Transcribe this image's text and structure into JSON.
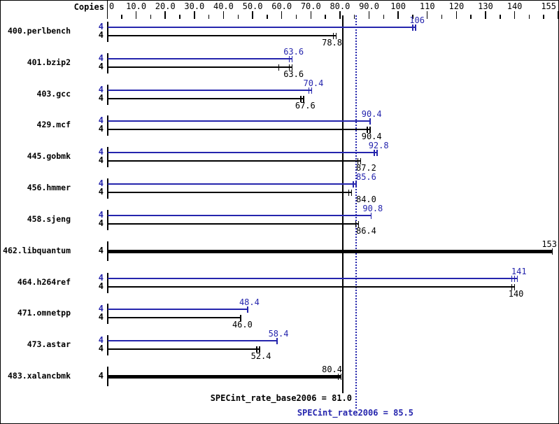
{
  "chart_data": {
    "type": "bar",
    "orientation": "horizontal",
    "title": "",
    "copies_header": "Copies",
    "xlim": [
      0,
      155
    ],
    "x_tick_values": [
      0,
      10,
      20,
      30,
      40,
      50,
      60,
      70,
      80,
      90,
      100,
      110,
      120,
      130,
      140,
      155
    ],
    "x_tick_labels": [
      "0",
      "10.0",
      "20.0",
      "30.0",
      "40.0",
      "50.0",
      "60.0",
      "70.0",
      "80.0",
      "90.0",
      "100",
      "110",
      "120",
      "130",
      "140",
      "155"
    ],
    "x_minor_ticks": [
      5,
      15,
      25,
      35,
      45,
      55,
      65,
      75,
      85,
      95,
      105,
      115,
      125,
      135,
      145,
      150
    ],
    "categories": [
      "400.perlbench",
      "401.bzip2",
      "403.gcc",
      "429.mcf",
      "445.gobmk",
      "456.hmmer",
      "458.sjeng",
      "462.libquantum",
      "464.h264ref",
      "471.omnetpp",
      "473.astar",
      "483.xalancbmk"
    ],
    "series": [
      {
        "name": "peak (SPECint_rate2006)",
        "color": "#2525ad",
        "values": [
          106,
          63.6,
          70.4,
          90.4,
          92.8,
          85.6,
          90.8,
          153,
          141,
          48.4,
          58.4,
          80.4
        ]
      },
      {
        "name": "base (SPECint_rate_base2006)",
        "color": "#000000",
        "values": [
          78.8,
          63.6,
          67.6,
          90.4,
          87.2,
          84.0,
          86.4,
          153,
          140,
          46.0,
          52.4,
          80.4
        ]
      }
    ],
    "benchmarks": [
      {
        "name": "400.perlbench",
        "copies": [
          "4",
          "4"
        ],
        "peak": 106,
        "peak_label": "106",
        "peak_marks": 2,
        "base": 78.8,
        "base_label": "78.8",
        "base_marks": 2
      },
      {
        "name": "401.bzip2",
        "copies": [
          "4",
          "4"
        ],
        "peak": 63.6,
        "peak_label": "63.6",
        "peak_marks": 2,
        "base": 63.6,
        "base_label": "63.6",
        "base_marks": 2,
        "base_mid_marks": [
          59.0
        ]
      },
      {
        "name": "403.gcc",
        "copies": [
          "4",
          "4"
        ],
        "peak": 70.4,
        "peak_label": "70.4",
        "peak_marks": 2,
        "base": 67.6,
        "base_label": "67.6",
        "base_marks": 2
      },
      {
        "name": "429.mcf",
        "copies": [
          "4",
          "4"
        ],
        "peak": 90.4,
        "peak_label": "90.4",
        "peak_marks": 1,
        "base": 90.4,
        "base_label": "90.4",
        "base_marks": 2
      },
      {
        "name": "445.gobmk",
        "copies": [
          "4",
          "4"
        ],
        "peak": 92.8,
        "peak_label": "92.8",
        "peak_marks": 2,
        "base": 87.2,
        "base_label": "87.2",
        "base_marks": 2
      },
      {
        "name": "456.hmmer",
        "copies": [
          "4",
          "4"
        ],
        "peak": 85.6,
        "peak_label": "85.6",
        "peak_marks": 2,
        "base": 84.0,
        "base_label": "84.0",
        "base_marks": 2
      },
      {
        "name": "458.sjeng",
        "copies": [
          "4",
          "4"
        ],
        "peak": 90.8,
        "peak_label": "90.8",
        "peak_marks": 1,
        "base": 86.4,
        "base_label": "86.4",
        "base_marks": 2
      },
      {
        "name": "462.libquantum",
        "copies": [
          "4"
        ],
        "single_bar": true,
        "value": 153,
        "label": "153",
        "marks": 1
      },
      {
        "name": "464.h264ref",
        "copies": [
          "4",
          "4"
        ],
        "peak": 141,
        "peak_label": "141",
        "peak_marks": 3,
        "base": 140,
        "base_label": "140",
        "base_marks": 2
      },
      {
        "name": "471.omnetpp",
        "copies": [
          "4",
          "4"
        ],
        "peak": 48.4,
        "peak_label": "48.4",
        "peak_marks": 1,
        "base": 46.0,
        "base_label": "46.0",
        "base_marks": 1
      },
      {
        "name": "473.astar",
        "copies": [
          "4",
          "4"
        ],
        "peak": 58.4,
        "peak_label": "58.4",
        "peak_marks": 1,
        "base": 52.4,
        "base_label": "52.4",
        "base_marks": 2
      },
      {
        "name": "483.xalancbmk",
        "copies": [
          "4"
        ],
        "single_bar": true,
        "value": 80.4,
        "label": "80.4",
        "marks": 2
      }
    ],
    "means": {
      "base": {
        "value": 81.0,
        "label": "SPECint_rate_base2006 = 81.0"
      },
      "peak": {
        "value": 85.5,
        "label": "SPECint_rate2006 = 85.5"
      }
    },
    "colors": {
      "peak": "#2525ad",
      "base": "#000000",
      "background": "#ffffff"
    },
    "legend_position": "none",
    "grid": false
  }
}
